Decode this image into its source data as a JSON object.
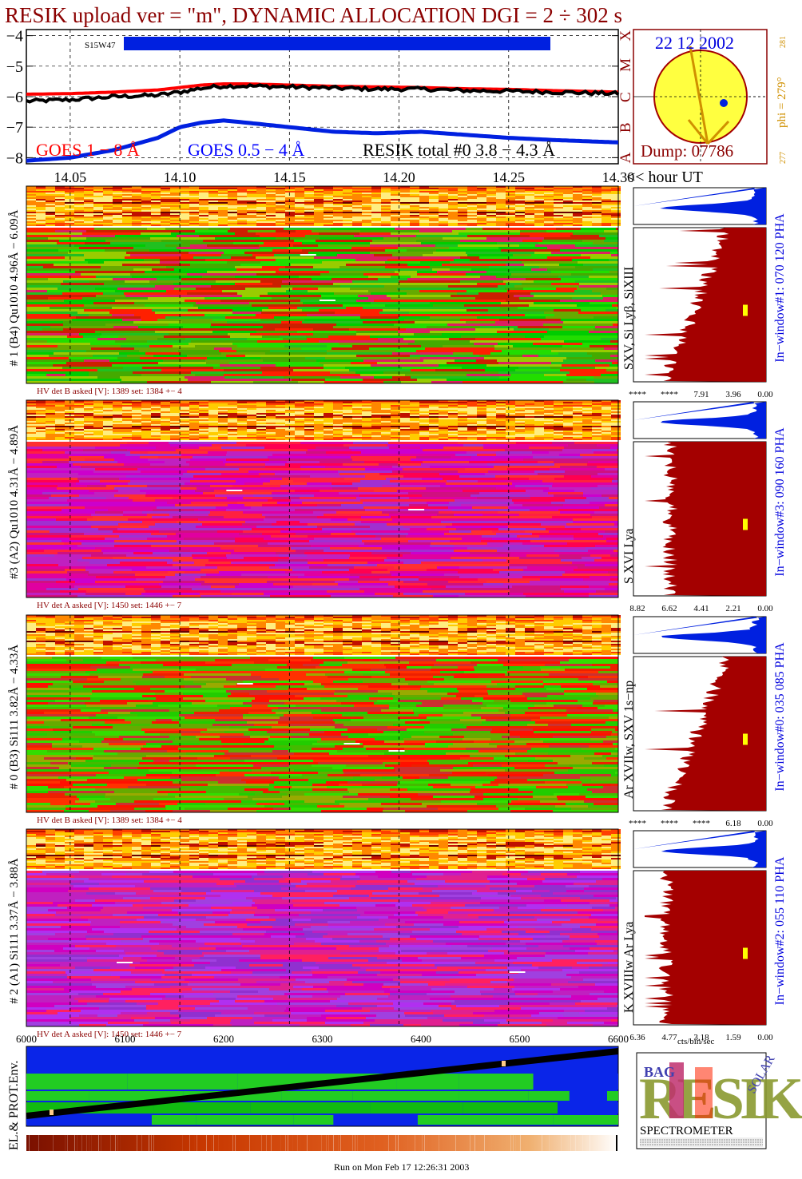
{
  "title": "RESIK upload ver = \"m\", DYNAMIC ALLOCATION  DGI =   2 ÷ 302 s",
  "colors": {
    "title": "#8b0000",
    "goes_long": "#ff0000",
    "goes_short": "#0000ff",
    "resik": "#000000",
    "dark_red": "#a40000",
    "blue_bar": "#0020e0",
    "sun": "#ffff40",
    "orange": "#e0a000"
  },
  "lightcurve": {
    "y_ticks": [
      "−4",
      "−5",
      "−6",
      "−7",
      "−8"
    ],
    "x_ticks": [
      "14.05",
      "14.10",
      "14.15",
      "14.20",
      "14.25",
      "14.30"
    ],
    "x_unit": "<< hour UT",
    "bar_label": "S15W47",
    "class_letters": [
      "X",
      "M",
      "C",
      "B",
      "A"
    ],
    "legend": {
      "goes_long": "GOES 1 − 8 Å",
      "goes_short": "GOES 0.5 − 4 Å",
      "resik": "RESIK total #0  3.8 − 4.3 Å"
    }
  },
  "sun_box": {
    "date": "22 12 2002",
    "dump": "Dump: 07786",
    "phi": "phi = 279°",
    "phi_small": "281",
    "bottom_small": "277"
  },
  "panels": [
    {
      "side_label": "# 1 (B4) Qu1010 4.96Å − 6.09Å",
      "line_label": "SXV, Si Lyβ, SiXIII",
      "window_label": "In−window#1:  070 120 PHA",
      "hv": "HV det B asked [V]:  1389 set:  1384 +−   4",
      "scale": [
        "****",
        "****",
        "7.91",
        "3.96",
        "0.00"
      ],
      "palette": "green"
    },
    {
      "side_label": "#3 (A2) Qu1010  4.31Å − 4.89Å",
      "line_label": "S XVI Lya",
      "window_label": "In−window#3:  090 160 PHA",
      "hv": "HV det A asked [V]:  1450 set:  1446 +−   7",
      "scale": [
        "8.82",
        "6.62",
        "4.41",
        "2.21",
        "0.00"
      ],
      "palette": "magenta"
    },
    {
      "side_label": "# 0 (B3) Si111  3.82Å − 4.33Å",
      "line_label": "Ar XVIIw, SXV 1s−np",
      "window_label": "In−window#0:  035 085 PHA",
      "hv": "HV det B asked [V]:  1389 set:  1384 +−   4",
      "scale": [
        "****",
        "****",
        "****",
        "6.18",
        "0.00"
      ],
      "palette": "greenred"
    },
    {
      "side_label": "# 2 (A1) Si111  3.37Å − 3.88Å",
      "line_label": "K XVIIIw  Ar Lya",
      "window_label": "In−window#2:  055 110 PHA",
      "hv": "HV det A asked [V]:  1450 set:  1446 +−   7",
      "scale": [
        "6.36",
        "4.77",
        "3.18",
        "1.59",
        "0.00"
      ],
      "palette": "purple"
    }
  ],
  "scale_unit": "cts/bin/sec",
  "x_axis_bottom": [
    "6000",
    "6100",
    "6200",
    "6300",
    "6400",
    "6500",
    "6600"
  ],
  "env_label": "EL.& PROT.Env.",
  "logo": {
    "big": "RESIK",
    "small_b": "BAG",
    "small_solar": "SOLAR",
    "caption": "SPECTROMETER"
  },
  "footer": "Run on Mon Feb 17 12:26:31 2003",
  "chart_data": [
    {
      "type": "line",
      "title": "RESIK upload ver = \"m\", DYNAMIC ALLOCATION  DGI =   2 ÷ 302 s",
      "xlabel": "<< hour UT",
      "ylabel": "",
      "xlim": [
        14.03,
        14.3
      ],
      "ylim": [
        -8.2,
        -3.8
      ],
      "x": [
        14.03,
        14.05,
        14.07,
        14.09,
        14.1,
        14.11,
        14.12,
        14.13,
        14.15,
        14.17,
        14.19,
        14.21,
        14.23,
        14.25,
        14.27,
        14.3
      ],
      "series": [
        {
          "name": "GOES 1 − 8 Å",
          "values": [
            -5.92,
            -5.9,
            -5.85,
            -5.78,
            -5.7,
            -5.62,
            -5.58,
            -5.58,
            -5.62,
            -5.66,
            -5.68,
            -5.7,
            -5.74,
            -5.76,
            -5.8,
            -5.85
          ]
        },
        {
          "name": "GOES 0.5 − 4 Å",
          "values": [
            -8.1,
            -8.0,
            -7.75,
            -7.35,
            -7.0,
            -6.85,
            -6.78,
            -6.85,
            -7.0,
            -7.15,
            -7.2,
            -7.15,
            -7.25,
            -7.35,
            -7.42,
            -7.5
          ]
        },
        {
          "name": "RESIK total #0  3.8 − 4.3 Å",
          "values": [
            -6.15,
            -6.1,
            -6.0,
            -5.95,
            -5.85,
            -5.72,
            -5.65,
            -5.65,
            -5.68,
            -5.72,
            -5.75,
            -5.75,
            -5.8,
            -5.82,
            -5.85,
            -5.9
          ]
        }
      ]
    }
  ]
}
